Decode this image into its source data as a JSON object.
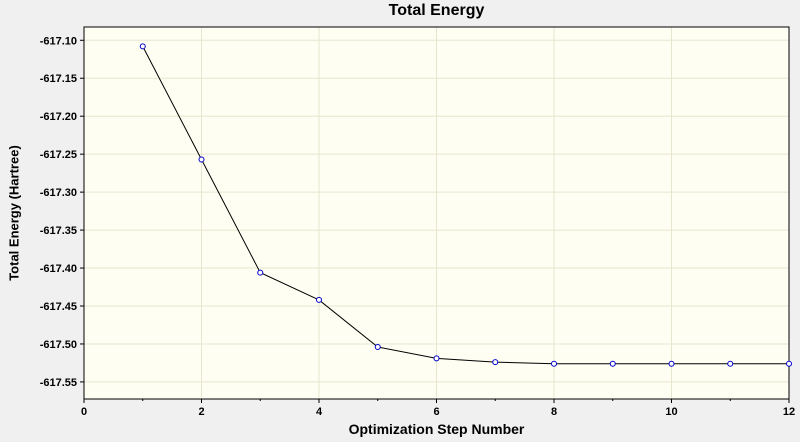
{
  "chart_data": {
    "type": "line",
    "title": "Total Energy",
    "xlabel": "Optimization Step Number",
    "ylabel": "Total Energy (Hartree)",
    "x": [
      1,
      2,
      3,
      4,
      5,
      6,
      7,
      8,
      9,
      10,
      11,
      12
    ],
    "y": [
      -617.108,
      -617.257,
      -617.406,
      -617.442,
      -617.504,
      -617.519,
      -617.524,
      -617.526,
      -617.526,
      -617.526,
      -617.526,
      -617.526
    ],
    "xlim": [
      0,
      12
    ],
    "ylim": [
      -617.5725,
      -617.0825
    ],
    "x_ticks": [
      0,
      2,
      4,
      6,
      8,
      10,
      12
    ],
    "x_minor_ticks": [
      1,
      3,
      5,
      7,
      9,
      11
    ],
    "y_ticks": [
      -617.1,
      -617.15,
      -617.2,
      -617.25,
      -617.3,
      -617.35,
      -617.4,
      -617.45,
      -617.5,
      -617.55
    ],
    "grid": true,
    "legend": "none",
    "colors": {
      "page_bg": "#f0f0f0",
      "plot_bg": "#fffef2",
      "grid": "#e6e6d0",
      "frame": "#000000",
      "text": "#000000",
      "line": "#000000",
      "marker": "#0000cc",
      "marker_fill": "#ffffff"
    }
  }
}
